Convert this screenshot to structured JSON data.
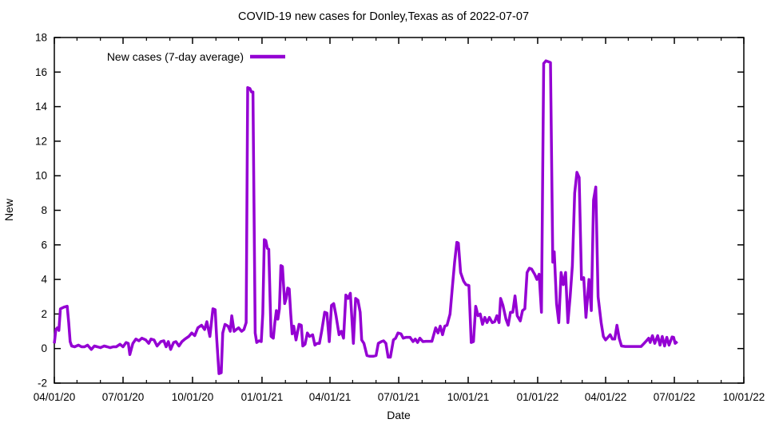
{
  "page": {
    "background": "#ffffff"
  },
  "chart_data": {
    "type": "line",
    "title": "COVID-19 new cases for Donley,Texas as of 2022-07-07",
    "xlabel": "Date",
    "ylabel": "New",
    "grid": false,
    "legend": {
      "position": "top-left-inside",
      "entries": [
        {
          "label": "New cases (7-day average)",
          "color": "#9400D3"
        }
      ]
    },
    "axis_color": "#000000",
    "text_color": "#000000",
    "ylim": [
      -2,
      18
    ],
    "y_ticks": [
      -2,
      0,
      2,
      4,
      6,
      8,
      10,
      12,
      14,
      16,
      18
    ],
    "x_epoch": "2020-04-01",
    "x_range_days": [
      0,
      913
    ],
    "x_major_ticks": [
      {
        "day": 0,
        "label": "04/01/20"
      },
      {
        "day": 91,
        "label": "07/01/20"
      },
      {
        "day": 183,
        "label": "10/01/20"
      },
      {
        "day": 275,
        "label": "01/01/21"
      },
      {
        "day": 365,
        "label": "04/01/21"
      },
      {
        "day": 456,
        "label": "07/01/21"
      },
      {
        "day": 548,
        "label": "10/01/21"
      },
      {
        "day": 640,
        "label": "01/01/22"
      },
      {
        "day": 730,
        "label": "04/01/22"
      },
      {
        "day": 821,
        "label": "07/01/22"
      },
      {
        "day": 913,
        "label": "10/01/22"
      }
    ],
    "x_minor_tick_days": [
      30,
      61,
      122,
      153,
      214,
      244,
      306,
      334,
      395,
      426,
      487,
      518,
      579,
      609,
      671,
      699,
      760,
      791,
      852,
      883
    ],
    "series": [
      {
        "name": "New cases (7-day average)",
        "color": "#9400D3",
        "line_width": 3.5,
        "points": [
          [
            0,
            0.3
          ],
          [
            2,
            1.1
          ],
          [
            4,
            1.2
          ],
          [
            6,
            1.05
          ],
          [
            8,
            2.3
          ],
          [
            13,
            2.4
          ],
          [
            17,
            2.45
          ],
          [
            19,
            1.5
          ],
          [
            21,
            0.4
          ],
          [
            23,
            0.15
          ],
          [
            27,
            0.1
          ],
          [
            32,
            0.2
          ],
          [
            36,
            0.1
          ],
          [
            40,
            0.1
          ],
          [
            44,
            0.2
          ],
          [
            49,
            -0.05
          ],
          [
            53,
            0.15
          ],
          [
            57,
            0.1
          ],
          [
            61,
            0.05
          ],
          [
            66,
            0.15
          ],
          [
            70,
            0.1
          ],
          [
            74,
            0.05
          ],
          [
            78,
            0.1
          ],
          [
            82,
            0.1
          ],
          [
            87,
            0.25
          ],
          [
            91,
            0.1
          ],
          [
            95,
            0.35
          ],
          [
            98,
            0.3
          ],
          [
            100,
            -0.35
          ],
          [
            104,
            0.3
          ],
          [
            108,
            0.55
          ],
          [
            112,
            0.45
          ],
          [
            116,
            0.6
          ],
          [
            121,
            0.5
          ],
          [
            125,
            0.3
          ],
          [
            128,
            0.55
          ],
          [
            132,
            0.5
          ],
          [
            136,
            0.15
          ],
          [
            141,
            0.4
          ],
          [
            145,
            0.45
          ],
          [
            148,
            0.1
          ],
          [
            151,
            0.4
          ],
          [
            154,
            -0.05
          ],
          [
            158,
            0.35
          ],
          [
            161,
            0.4
          ],
          [
            165,
            0.15
          ],
          [
            169,
            0.4
          ],
          [
            173,
            0.55
          ],
          [
            178,
            0.7
          ],
          [
            182,
            0.9
          ],
          [
            186,
            0.75
          ],
          [
            190,
            1.2
          ],
          [
            195,
            1.35
          ],
          [
            199,
            1.1
          ],
          [
            202,
            1.55
          ],
          [
            206,
            0.7
          ],
          [
            210,
            2.3
          ],
          [
            213,
            2.25
          ],
          [
            215,
            0.6
          ],
          [
            218,
            -1.45
          ],
          [
            221,
            -1.4
          ],
          [
            223,
            0.9
          ],
          [
            226,
            1.4
          ],
          [
            230,
            1.3
          ],
          [
            233,
            1.0
          ],
          [
            235,
            1.9
          ],
          [
            238,
            1.0
          ],
          [
            241,
            1.1
          ],
          [
            244,
            1.2
          ],
          [
            248,
            1.0
          ],
          [
            251,
            1.1
          ],
          [
            254,
            1.5
          ],
          [
            256,
            15.1
          ],
          [
            259,
            15.05
          ],
          [
            261,
            14.85
          ],
          [
            263,
            14.85
          ],
          [
            266,
            0.9
          ],
          [
            268,
            0.35
          ],
          [
            271,
            0.45
          ],
          [
            274,
            0.4
          ],
          [
            276,
            2.0
          ],
          [
            278,
            6.3
          ],
          [
            280,
            6.25
          ],
          [
            282,
            5.8
          ],
          [
            284,
            5.75
          ],
          [
            287,
            0.7
          ],
          [
            290,
            0.6
          ],
          [
            292,
            1.5
          ],
          [
            294,
            2.2
          ],
          [
            296,
            1.7
          ],
          [
            298,
            2.3
          ],
          [
            300,
            4.8
          ],
          [
            302,
            4.75
          ],
          [
            305,
            2.6
          ],
          [
            307,
            2.9
          ],
          [
            309,
            3.5
          ],
          [
            311,
            3.45
          ],
          [
            313,
            2.0
          ],
          [
            315,
            0.85
          ],
          [
            317,
            1.3
          ],
          [
            320,
            0.5
          ],
          [
            324,
            1.4
          ],
          [
            327,
            1.35
          ],
          [
            329,
            0.15
          ],
          [
            332,
            0.25
          ],
          [
            335,
            0.9
          ],
          [
            338,
            0.7
          ],
          [
            342,
            0.8
          ],
          [
            345,
            0.2
          ],
          [
            348,
            0.3
          ],
          [
            351,
            0.3
          ],
          [
            354,
            1.0
          ],
          [
            358,
            2.1
          ],
          [
            361,
            2.05
          ],
          [
            364,
            0.4
          ],
          [
            367,
            2.5
          ],
          [
            370,
            2.6
          ],
          [
            373,
            1.9
          ],
          [
            377,
            0.8
          ],
          [
            380,
            1.0
          ],
          [
            383,
            0.6
          ],
          [
            386,
            3.1
          ],
          [
            389,
            2.9
          ],
          [
            392,
            3.2
          ],
          [
            396,
            0.3
          ],
          [
            399,
            2.9
          ],
          [
            402,
            2.8
          ],
          [
            405,
            2.1
          ],
          [
            407,
            0.5
          ],
          [
            410,
            0.3
          ],
          [
            414,
            -0.4
          ],
          [
            418,
            -0.45
          ],
          [
            422,
            -0.45
          ],
          [
            426,
            -0.4
          ],
          [
            429,
            0.3
          ],
          [
            433,
            0.4
          ],
          [
            436,
            0.45
          ],
          [
            439,
            0.3
          ],
          [
            442,
            -0.5
          ],
          [
            445,
            -0.5
          ],
          [
            449,
            0.5
          ],
          [
            452,
            0.6
          ],
          [
            455,
            0.9
          ],
          [
            459,
            0.85
          ],
          [
            462,
            0.6
          ],
          [
            466,
            0.65
          ],
          [
            471,
            0.65
          ],
          [
            475,
            0.4
          ],
          [
            478,
            0.55
          ],
          [
            481,
            0.35
          ],
          [
            484,
            0.6
          ],
          [
            488,
            0.4
          ],
          [
            492,
            0.42
          ],
          [
            496,
            0.42
          ],
          [
            500,
            0.42
          ],
          [
            505,
            1.2
          ],
          [
            508,
            0.9
          ],
          [
            511,
            1.3
          ],
          [
            514,
            0.8
          ],
          [
            517,
            1.3
          ],
          [
            520,
            1.35
          ],
          [
            524,
            2.0
          ],
          [
            527,
            3.5
          ],
          [
            530,
            5.0
          ],
          [
            533,
            6.15
          ],
          [
            535,
            6.1
          ],
          [
            538,
            4.4
          ],
          [
            542,
            3.9
          ],
          [
            545,
            3.7
          ],
          [
            549,
            3.65
          ],
          [
            552,
            0.35
          ],
          [
            555,
            0.4
          ],
          [
            558,
            2.45
          ],
          [
            561,
            1.9
          ],
          [
            564,
            2.0
          ],
          [
            567,
            1.4
          ],
          [
            570,
            1.8
          ],
          [
            573,
            1.5
          ],
          [
            576,
            1.8
          ],
          [
            580,
            1.5
          ],
          [
            583,
            1.55
          ],
          [
            586,
            1.9
          ],
          [
            589,
            1.5
          ],
          [
            591,
            2.9
          ],
          [
            594,
            2.5
          ],
          [
            598,
            1.7
          ],
          [
            601,
            1.35
          ],
          [
            604,
            2.1
          ],
          [
            607,
            2.1
          ],
          [
            610,
            3.05
          ],
          [
            613,
            1.9
          ],
          [
            617,
            1.6
          ],
          [
            620,
            2.2
          ],
          [
            623,
            2.3
          ],
          [
            626,
            4.4
          ],
          [
            629,
            4.65
          ],
          [
            632,
            4.6
          ],
          [
            636,
            4.3
          ],
          [
            639,
            4.0
          ],
          [
            642,
            4.3
          ],
          [
            645,
            2.1
          ],
          [
            648,
            16.5
          ],
          [
            651,
            16.65
          ],
          [
            654,
            16.6
          ],
          [
            657,
            16.55
          ],
          [
            660,
            5.0
          ],
          [
            662,
            5.6
          ],
          [
            665,
            2.6
          ],
          [
            668,
            1.5
          ],
          [
            671,
            4.4
          ],
          [
            674,
            3.7
          ],
          [
            677,
            4.4
          ],
          [
            680,
            1.5
          ],
          [
            683,
            3.0
          ],
          [
            686,
            4.8
          ],
          [
            689,
            9.0
          ],
          [
            692,
            10.2
          ],
          [
            695,
            9.9
          ],
          [
            698,
            4.0
          ],
          [
            701,
            4.1
          ],
          [
            704,
            1.8
          ],
          [
            708,
            4.0
          ],
          [
            711,
            2.2
          ],
          [
            714,
            8.6
          ],
          [
            717,
            9.35
          ],
          [
            720,
            3.0
          ],
          [
            724,
            1.5
          ],
          [
            727,
            0.7
          ],
          [
            730,
            0.5
          ],
          [
            733,
            0.65
          ],
          [
            736,
            0.8
          ],
          [
            739,
            0.55
          ],
          [
            742,
            0.55
          ],
          [
            745,
            1.35
          ],
          [
            748,
            0.6
          ],
          [
            751,
            0.15
          ],
          [
            756,
            0.12
          ],
          [
            762,
            0.12
          ],
          [
            767,
            0.12
          ],
          [
            772,
            0.12
          ],
          [
            777,
            0.12
          ],
          [
            781,
            0.3
          ],
          [
            784,
            0.45
          ],
          [
            787,
            0.6
          ],
          [
            789,
            0.35
          ],
          [
            792,
            0.75
          ],
          [
            795,
            0.3
          ],
          [
            799,
            0.75
          ],
          [
            802,
            0.2
          ],
          [
            805,
            0.7
          ],
          [
            808,
            0.15
          ],
          [
            811,
            0.65
          ],
          [
            814,
            0.2
          ],
          [
            818,
            0.67
          ],
          [
            820,
            0.65
          ],
          [
            822,
            0.3
          ],
          [
            825,
            0.4
          ]
        ]
      }
    ]
  }
}
